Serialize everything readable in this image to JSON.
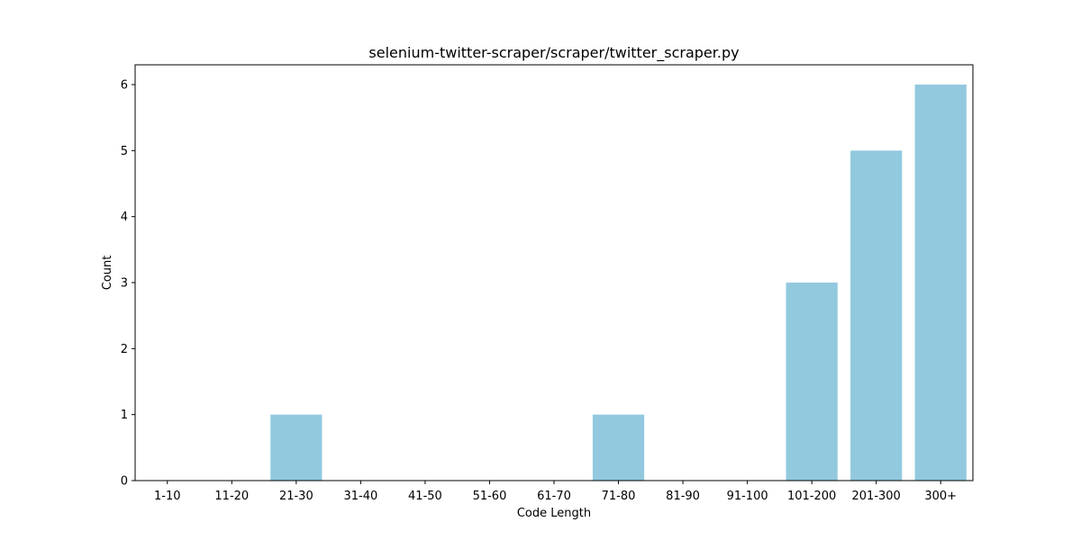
{
  "chart_data": {
    "type": "bar",
    "title": "selenium-twitter-scraper/scraper/twitter_scraper.py",
    "xlabel": "Code Length",
    "ylabel": "Count",
    "categories": [
      "1-10",
      "11-20",
      "21-30",
      "31-40",
      "41-50",
      "51-60",
      "61-70",
      "71-80",
      "81-90",
      "91-100",
      "101-200",
      "201-300",
      "300+"
    ],
    "values": [
      0,
      0,
      1,
      0,
      0,
      0,
      0,
      1,
      0,
      0,
      3,
      5,
      6
    ],
    "yticks": [
      0,
      1,
      2,
      3,
      4,
      5,
      6
    ],
    "ylim": [
      0,
      6.3
    ],
    "grid": false,
    "bar_color": "#92c9df"
  }
}
